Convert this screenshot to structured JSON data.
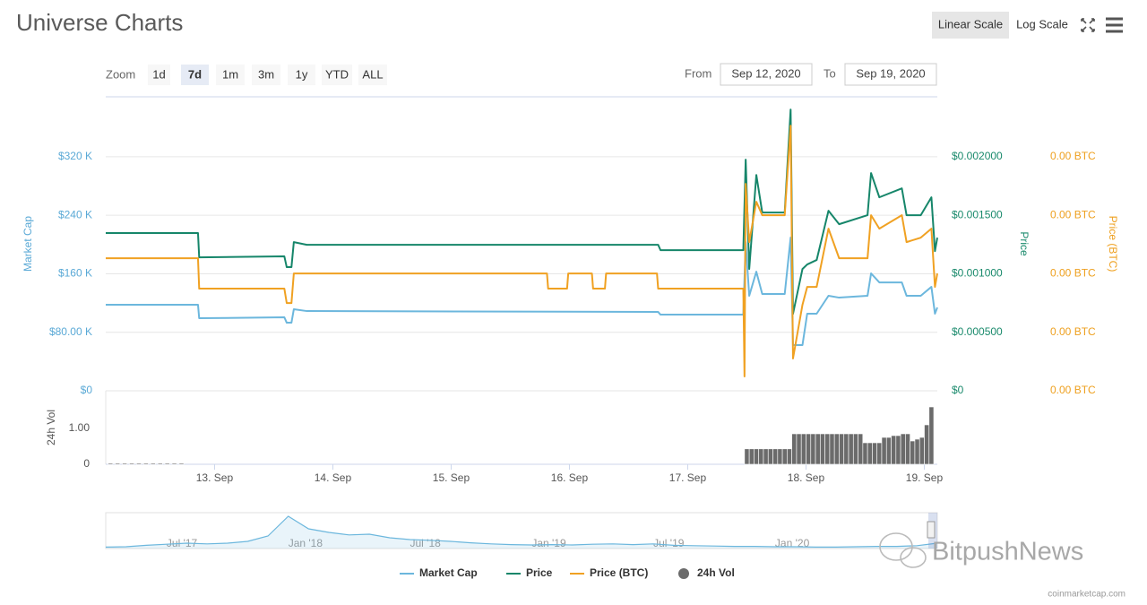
{
  "header": {
    "title": "Universe Charts",
    "scale_buttons": [
      "Linear Scale",
      "Log Scale"
    ]
  },
  "controls": {
    "zoom_label": "Zoom",
    "zoom_buttons": [
      "1d",
      "7d",
      "1m",
      "3m",
      "1y",
      "YTD",
      "ALL"
    ],
    "from_label": "From",
    "from": "Sep 12, 2020",
    "to_label": "To",
    "to": "Sep 19, 2020"
  },
  "chart_data": [
    {
      "type": "line",
      "ylabel": "Market Cap",
      "y2label": "Price",
      "y3label": "Price (BTC)",
      "xlim": [
        12.08,
        19.11
      ],
      "ylim": [
        0,
        402000
      ],
      "yticks": [
        {
          "value": 0,
          "label": "$0"
        },
        {
          "value": 80000,
          "label": "$80.00 K"
        },
        {
          "value": 160000,
          "label": "$160 K"
        },
        {
          "value": 240000,
          "label": "$240 K"
        },
        {
          "value": 320000,
          "label": "$320 K"
        }
      ],
      "y2lim": [
        0,
        0.002513
      ],
      "y2ticks": [
        {
          "value": 0,
          "label": "$0"
        },
        {
          "value": 0.0005,
          "label": "$0.000500"
        },
        {
          "value": 0.001,
          "label": "$0.001000"
        },
        {
          "value": 0.0015,
          "label": "$0.001500"
        },
        {
          "value": 0.002,
          "label": "$0.002000"
        }
      ],
      "y3lim": [
        0,
        2.513e-07
      ],
      "y3ticks": [
        {
          "value": 0,
          "label": "0.00 BTC"
        },
        {
          "value": 5e-08,
          "label": "0.00 BTC"
        },
        {
          "value": 1e-07,
          "label": "0.00 BTC"
        },
        {
          "value": 1.5e-07,
          "label": "0.00 BTC"
        },
        {
          "value": 2e-07,
          "label": "0.00 BTC"
        }
      ],
      "grid": true,
      "series": [
        {
          "name": "Market Cap",
          "color": "#6cb7dd",
          "axis": "y",
          "x": [
            12.08,
            12.86,
            12.87,
            13.59,
            13.61,
            13.65,
            13.67,
            13.78,
            16.75,
            16.77,
            17.47,
            17.49,
            17.52,
            17.58,
            17.63,
            17.82,
            17.87,
            17.89,
            17.97,
            18.01,
            18.09,
            18.19,
            18.28,
            18.52,
            18.55,
            18.62,
            18.81,
            18.85,
            18.97,
            19.06,
            19.09,
            19.11
          ],
          "values": [
            117600,
            117600,
            99200,
            100500,
            93100,
            93100,
            111500,
            109000,
            107800,
            104100,
            104100,
            203400,
            129900,
            162900,
            132300,
            132300,
            209500,
            62500,
            62500,
            105400,
            105400,
            129900,
            127400,
            129900,
            160500,
            148200,
            148200,
            129900,
            129900,
            142100,
            105400,
            113900
          ]
        },
        {
          "name": "Price",
          "color": "#16866a",
          "axis": "y2",
          "x": [
            12.08,
            12.86,
            12.87,
            13.59,
            13.61,
            13.65,
            13.67,
            13.78,
            16.75,
            16.77,
            17.47,
            17.49,
            17.52,
            17.58,
            17.63,
            17.82,
            17.87,
            17.89,
            17.97,
            18.01,
            18.09,
            18.19,
            18.28,
            18.52,
            18.55,
            18.62,
            18.81,
            18.85,
            18.97,
            19.06,
            19.09,
            19.11
          ],
          "values": [
            0.001348,
            0.001348,
            0.001141,
            0.001149,
            0.001057,
            0.001057,
            0.001271,
            0.001248,
            0.001248,
            0.001202,
            0.001202,
            0.001976,
            0.001041,
            0.001845,
            0.001524,
            0.001524,
            0.002404,
            0.000658,
            0.001041,
            0.00108,
            0.001118,
            0.001539,
            0.001424,
            0.001501,
            0.001861,
            0.001654,
            0.00173,
            0.001501,
            0.001501,
            0.001654,
            0.001194,
            0.001309
          ]
        },
        {
          "name": "Price (BTC)",
          "color": "#f0a122",
          "axis": "y3",
          "x": [
            12.08,
            12.86,
            12.87,
            13.59,
            13.61,
            13.65,
            13.67,
            15.81,
            15.82,
            15.98,
            15.99,
            16.19,
            16.2,
            16.3,
            16.31,
            16.74,
            16.75,
            17.46,
            17.47,
            17.48,
            17.49,
            17.52,
            17.58,
            17.63,
            17.82,
            17.87,
            17.89,
            17.97,
            18.01,
            18.09,
            18.19,
            18.28,
            18.52,
            18.55,
            18.62,
            18.81,
            18.85,
            18.97,
            19.06,
            19.09,
            19.11
          ],
          "values": [
            1.133e-07,
            1.133e-07,
            8.73e-08,
            8.73e-08,
            7.5e-08,
            7.5e-08,
            1.003e-07,
            1.003e-07,
            8.73e-08,
            8.73e-08,
            1.003e-07,
            1.003e-07,
            8.73e-08,
            8.73e-08,
            1.003e-07,
            1.003e-07,
            8.73e-08,
            8.73e-08,
            8.73e-08,
            1.23e-08,
            1.769e-07,
            1.271e-07,
            1.616e-07,
            1.501e-07,
            1.501e-07,
            2.266e-07,
            2.76e-08,
            7.35e-08,
            8.88e-08,
            8.88e-08,
            1.386e-07,
            1.133e-07,
            1.133e-07,
            1.501e-07,
            1.386e-07,
            1.501e-07,
            1.271e-07,
            1.309e-07,
            1.386e-07,
            8.88e-08,
            1.003e-07
          ]
        }
      ]
    },
    {
      "type": "bar",
      "ylabel": "24h Vol",
      "xlim": [
        12.08,
        19.11
      ],
      "xticks": [
        {
          "value": 13,
          "label": "13. Sep"
        },
        {
          "value": 14,
          "label": "14. Sep"
        },
        {
          "value": 15,
          "label": "15. Sep"
        },
        {
          "value": 16,
          "label": "16. Sep"
        },
        {
          "value": 17,
          "label": "17. Sep"
        },
        {
          "value": 18,
          "label": "18. Sep"
        },
        {
          "value": 19,
          "label": "19. Sep"
        }
      ],
      "ylim": [
        0,
        2.05
      ],
      "yticks": [
        0,
        {
          "value": 1,
          "label": "1.00"
        }
      ],
      "series": [
        {
          "name": "24h Vol",
          "color": "#6b6b6b",
          "x": [
            12.12,
            12.18,
            12.24,
            12.3,
            12.36,
            12.42,
            12.48,
            12.54,
            12.6,
            12.66,
            12.72,
            17.5,
            17.54,
            17.58,
            17.62,
            17.66,
            17.7,
            17.74,
            17.78,
            17.82,
            17.86,
            17.9,
            17.94,
            17.98,
            18.02,
            18.06,
            18.1,
            18.14,
            18.18,
            18.22,
            18.26,
            18.3,
            18.34,
            18.38,
            18.42,
            18.46,
            18.5,
            18.54,
            18.58,
            18.62,
            18.66,
            18.7,
            18.74,
            18.78,
            18.82,
            18.86,
            18.9,
            18.94,
            18.98,
            19.02,
            19.06
          ],
          "values": [
            0.03,
            0.03,
            0.03,
            0.03,
            0.03,
            0.03,
            0.03,
            0.03,
            0.03,
            0.03,
            0.03,
            0.43,
            0.43,
            0.43,
            0.43,
            0.43,
            0.43,
            0.43,
            0.43,
            0.43,
            0.43,
            0.85,
            0.85,
            0.85,
            0.85,
            0.85,
            0.85,
            0.85,
            0.85,
            0.85,
            0.85,
            0.85,
            0.85,
            0.85,
            0.85,
            0.85,
            0.6,
            0.6,
            0.6,
            0.6,
            0.75,
            0.75,
            0.8,
            0.8,
            0.85,
            0.85,
            0.65,
            0.7,
            0.75,
            1.1,
            1.6
          ]
        }
      ]
    },
    {
      "type": "area",
      "color": "#6cb7dd",
      "ylim": [
        0,
        1000000
      ],
      "categories": [
        null,
        null,
        null,
        "Jul '17",
        null,
        null,
        null,
        null,
        null,
        "Jan '18",
        null,
        null,
        null,
        null,
        null,
        "Jul '18",
        null,
        null,
        null,
        null,
        null,
        "Jan '19",
        null,
        null,
        null,
        null,
        null,
        "Jul '19",
        null,
        null,
        null,
        null,
        null,
        "Jan '20",
        null,
        null,
        null,
        null,
        null,
        null,
        null,
        null
      ],
      "values": [
        40000,
        50000,
        90000,
        120000,
        150000,
        130000,
        150000,
        200000,
        350000,
        900000,
        550000,
        450000,
        380000,
        400000,
        300000,
        250000,
        230000,
        200000,
        160000,
        130000,
        110000,
        100000,
        110000,
        100000,
        120000,
        130000,
        110000,
        130000,
        90000,
        80000,
        70000,
        60000,
        60000,
        50000,
        50000,
        40000,
        40000,
        50000,
        60000,
        60000,
        80000,
        150000
      ]
    }
  ],
  "footer": {
    "credit": "coinmarketcap.com",
    "watermark": "BitpushNews"
  }
}
